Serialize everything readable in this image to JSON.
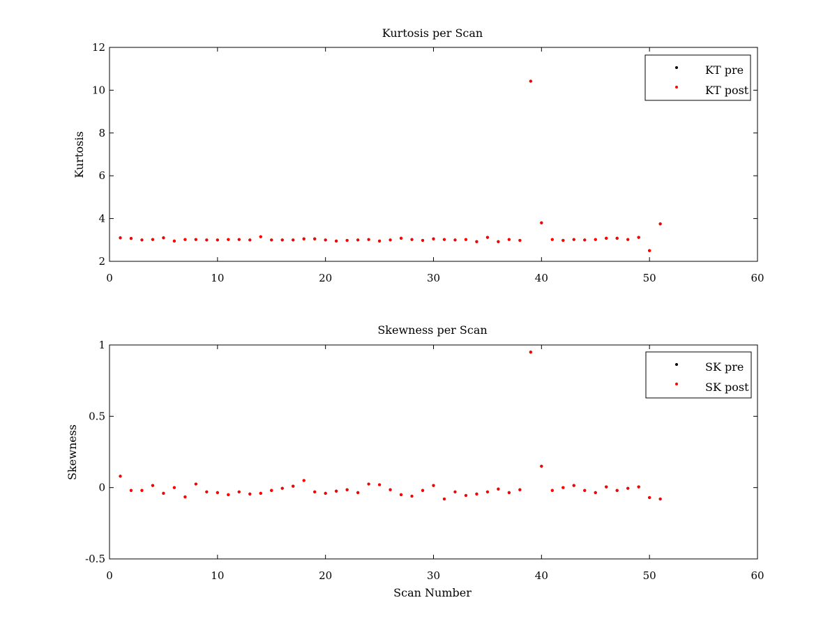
{
  "colors": {
    "pre": "#000000",
    "post": "#ff0000",
    "axis": "#000000",
    "background": "#ffffff"
  },
  "chart_data": [
    {
      "type": "scatter",
      "title": "Kurtosis per Scan",
      "xlabel": "",
      "ylabel": "Kurtosis",
      "xlim": [
        0,
        60
      ],
      "ylim": [
        2,
        12
      ],
      "xticks": [
        "0",
        "10",
        "20",
        "30",
        "40",
        "50",
        "60"
      ],
      "yticks": [
        "2",
        "4",
        "6",
        "8",
        "10",
        "12"
      ],
      "grid": false,
      "legend_position": "top-right",
      "x": [
        1,
        2,
        3,
        4,
        5,
        6,
        7,
        8,
        9,
        10,
        11,
        12,
        13,
        14,
        15,
        16,
        17,
        18,
        19,
        20,
        21,
        22,
        23,
        24,
        25,
        26,
        27,
        28,
        29,
        30,
        31,
        32,
        33,
        34,
        35,
        36,
        37,
        38,
        39,
        40,
        41,
        42,
        43,
        44,
        45,
        46,
        47,
        48,
        49,
        50,
        51
      ],
      "series": [
        {
          "name": "KT pre",
          "color": "#000000",
          "values": [
            3.1,
            3.07,
            3.0,
            3.02,
            3.1,
            2.95,
            3.02,
            3.02,
            3.0,
            3.0,
            3.02,
            3.02,
            3.0,
            3.15,
            3.0,
            3.0,
            3.0,
            3.05,
            3.05,
            3.0,
            2.95,
            2.98,
            3.0,
            3.02,
            2.95,
            3.0,
            3.08,
            3.02,
            2.98,
            3.05,
            3.02,
            3.0,
            3.02,
            2.92,
            3.12,
            2.92,
            3.02,
            2.98,
            10.42,
            3.8,
            3.02,
            2.98,
            3.02,
            3.0,
            3.02,
            3.08,
            3.08,
            3.02,
            3.12,
            2.5,
            3.75
          ]
        },
        {
          "name": "KT post",
          "color": "#ff0000",
          "values": [
            3.1,
            3.07,
            3.0,
            3.02,
            3.1,
            2.95,
            3.02,
            3.02,
            3.0,
            3.0,
            3.02,
            3.02,
            3.0,
            3.15,
            3.0,
            3.0,
            3.0,
            3.05,
            3.05,
            3.0,
            2.95,
            2.98,
            3.0,
            3.02,
            2.95,
            3.0,
            3.08,
            3.02,
            2.98,
            3.05,
            3.02,
            3.0,
            3.02,
            2.92,
            3.12,
            2.92,
            3.02,
            2.98,
            10.42,
            3.8,
            3.02,
            2.98,
            3.02,
            3.0,
            3.02,
            3.08,
            3.08,
            3.02,
            3.12,
            2.5,
            3.75
          ]
        }
      ]
    },
    {
      "type": "scatter",
      "title": "Skewness per Scan",
      "xlabel": "Scan Number",
      "ylabel": "Skewness",
      "xlim": [
        0,
        60
      ],
      "ylim": [
        -0.5,
        1
      ],
      "xticks": [
        "0",
        "10",
        "20",
        "30",
        "40",
        "50",
        "60"
      ],
      "yticks": [
        "-0.5",
        "0",
        "0.5",
        "1"
      ],
      "grid": false,
      "legend_position": "top-right",
      "x": [
        1,
        2,
        3,
        4,
        5,
        6,
        7,
        8,
        9,
        10,
        11,
        12,
        13,
        14,
        15,
        16,
        17,
        18,
        19,
        20,
        21,
        22,
        23,
        24,
        25,
        26,
        27,
        28,
        29,
        30,
        31,
        32,
        33,
        34,
        35,
        36,
        37,
        38,
        39,
        40,
        41,
        42,
        43,
        44,
        45,
        46,
        47,
        48,
        49,
        50,
        51
      ],
      "series": [
        {
          "name": "SK pre",
          "color": "#000000",
          "values": [
            0.08,
            -0.02,
            -0.02,
            0.015,
            -0.04,
            0.0,
            -0.065,
            0.025,
            -0.03,
            -0.035,
            -0.05,
            -0.03,
            -0.045,
            -0.04,
            -0.02,
            -0.005,
            0.01,
            0.05,
            -0.03,
            -0.04,
            -0.025,
            -0.015,
            -0.035,
            0.025,
            0.02,
            -0.015,
            -0.05,
            -0.06,
            -0.02,
            0.015,
            -0.08,
            -0.03,
            -0.055,
            -0.045,
            -0.03,
            -0.01,
            -0.035,
            -0.015,
            0.95,
            0.15,
            -0.02,
            0.0,
            0.015,
            -0.02,
            -0.035,
            0.005,
            -0.02,
            -0.005,
            0.005,
            -0.07,
            -0.08
          ]
        },
        {
          "name": "SK post",
          "color": "#ff0000",
          "values": [
            0.08,
            -0.02,
            -0.02,
            0.015,
            -0.04,
            0.0,
            -0.065,
            0.025,
            -0.03,
            -0.035,
            -0.05,
            -0.03,
            -0.045,
            -0.04,
            -0.02,
            -0.005,
            0.01,
            0.05,
            -0.03,
            -0.04,
            -0.025,
            -0.015,
            -0.035,
            0.025,
            0.02,
            -0.015,
            -0.05,
            -0.06,
            -0.02,
            0.015,
            -0.08,
            -0.03,
            -0.055,
            -0.045,
            -0.03,
            -0.01,
            -0.035,
            -0.015,
            0.95,
            0.15,
            -0.02,
            0.0,
            0.015,
            -0.02,
            -0.035,
            0.005,
            -0.02,
            -0.005,
            0.005,
            -0.07,
            -0.08
          ]
        }
      ]
    }
  ]
}
